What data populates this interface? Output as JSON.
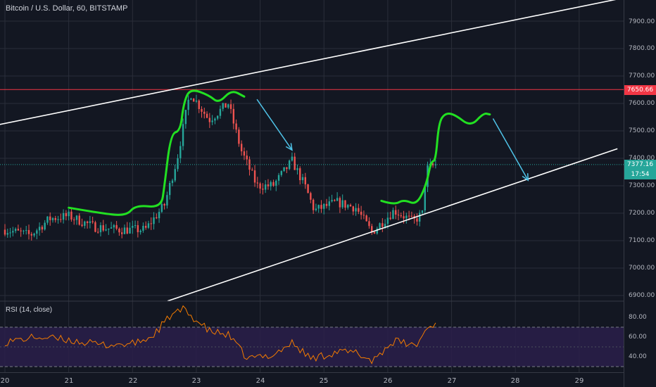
{
  "header": {
    "title": "Bitcoin / U.S. Dollar, 60, BITSTAMP"
  },
  "rsi_panel": {
    "title": "RSI (14, close)"
  },
  "price_axis": {
    "ticks": [
      "7900.00",
      "7800.00",
      "7700.00",
      "7600.00",
      "7500.00",
      "7400.00",
      "7300.00",
      "7200.00",
      "7100.00",
      "7000.00",
      "6900.00"
    ]
  },
  "rsi_axis": {
    "ticks": [
      "80.00",
      "60.00",
      "40.00"
    ]
  },
  "date_axis": {
    "ticks": [
      "20",
      "21",
      "22",
      "23",
      "24",
      "25",
      "26",
      "27",
      "28",
      "29"
    ]
  },
  "badges": {
    "resistance": {
      "label": "7650.66",
      "color": "#f23645"
    },
    "last_price": {
      "label": "7377.16",
      "color": "#26a69a"
    },
    "countdown": {
      "label": "17:54",
      "color": "#26a69a"
    }
  },
  "colors": {
    "background": "#131722",
    "grid": "#2a2e39",
    "up": "#26a69a",
    "down": "#ef5350",
    "channel": "#ffffff",
    "resistance_line": "#f23645",
    "drawing_green": "#22e022",
    "arrow_cyan": "#4fc3e8",
    "rsi_line": "#f57c00",
    "rsi_band": "#2a1f4a"
  },
  "chart_data": [
    {
      "type": "candlestick",
      "title": "Bitcoin / U.S. Dollar, 60, BITSTAMP",
      "x_ticks": [
        "20",
        "21",
        "22",
        "23",
        "24",
        "25",
        "26",
        "27",
        "28",
        "29"
      ],
      "ylim": [
        6880,
        7980
      ],
      "y_ticks": [
        7900,
        7800,
        7700,
        7600,
        7500,
        7400,
        7300,
        7200,
        7100,
        7000,
        6900
      ],
      "resistance_level": 7650.66,
      "last_price": 7377.16,
      "close_path_approx": [
        {
          "day": 20.0,
          "price": 7140
        },
        {
          "day": 20.4,
          "price": 7120
        },
        {
          "day": 20.7,
          "price": 7180
        },
        {
          "day": 21.0,
          "price": 7190
        },
        {
          "day": 21.4,
          "price": 7150
        },
        {
          "day": 21.8,
          "price": 7140
        },
        {
          "day": 22.2,
          "price": 7140
        },
        {
          "day": 22.5,
          "price": 7230
        },
        {
          "day": 22.7,
          "price": 7400
        },
        {
          "day": 22.9,
          "price": 7640
        },
        {
          "day": 23.2,
          "price": 7540
        },
        {
          "day": 23.5,
          "price": 7600
        },
        {
          "day": 23.7,
          "price": 7430
        },
        {
          "day": 23.95,
          "price": 7300
        },
        {
          "day": 24.2,
          "price": 7300
        },
        {
          "day": 24.5,
          "price": 7390
        },
        {
          "day": 24.7,
          "price": 7300
        },
        {
          "day": 24.85,
          "price": 7210
        },
        {
          "day": 25.2,
          "price": 7240
        },
        {
          "day": 25.5,
          "price": 7220
        },
        {
          "day": 25.75,
          "price": 7130
        },
        {
          "day": 26.1,
          "price": 7210
        },
        {
          "day": 26.4,
          "price": 7170
        },
        {
          "day": 26.55,
          "price": 7200
        },
        {
          "day": 26.6,
          "price": 7360
        },
        {
          "day": 26.75,
          "price": 7377
        }
      ]
    },
    {
      "type": "line",
      "title": "RSI (14, close)",
      "ylim": [
        25,
        95
      ],
      "y_ticks": [
        80,
        60,
        40
      ],
      "bands": [
        70,
        30
      ],
      "series": [
        {
          "name": "RSI (14, close)",
          "points": [
            {
              "day": 20.0,
              "value": 55
            },
            {
              "day": 20.5,
              "value": 60
            },
            {
              "day": 21.0,
              "value": 57
            },
            {
              "day": 21.5,
              "value": 52
            },
            {
              "day": 22.0,
              "value": 53
            },
            {
              "day": 22.3,
              "value": 60
            },
            {
              "day": 22.6,
              "value": 82
            },
            {
              "day": 22.8,
              "value": 88
            },
            {
              "day": 23.2,
              "value": 66
            },
            {
              "day": 23.5,
              "value": 62
            },
            {
              "day": 23.8,
              "value": 38
            },
            {
              "day": 24.2,
              "value": 42
            },
            {
              "day": 24.5,
              "value": 54
            },
            {
              "day": 24.8,
              "value": 38
            },
            {
              "day": 25.2,
              "value": 45
            },
            {
              "day": 25.5,
              "value": 44
            },
            {
              "day": 25.75,
              "value": 36
            },
            {
              "day": 26.1,
              "value": 56
            },
            {
              "day": 26.45,
              "value": 51
            },
            {
              "day": 26.6,
              "value": 68
            },
            {
              "day": 26.75,
              "value": 74
            }
          ]
        }
      ]
    }
  ],
  "annotations": {
    "channel_upper": [
      {
        "day": 19.85,
        "price": 7520
      },
      {
        "day": 29.6,
        "price": 7980
      }
    ],
    "channel_lower": [
      {
        "day": 22.55,
        "price": 6880
      },
      {
        "day": 29.6,
        "price": 7435
      }
    ],
    "green_pattern_1": [
      {
        "day": 21.0,
        "price": 7220
      },
      {
        "day": 21.5,
        "price": 7200
      },
      {
        "day": 21.9,
        "price": 7190
      },
      {
        "day": 22.05,
        "price": 7230
      },
      {
        "day": 22.45,
        "price": 7220
      },
      {
        "day": 22.5,
        "price": 7300
      },
      {
        "day": 22.6,
        "price": 7490
      },
      {
        "day": 22.75,
        "price": 7500
      },
      {
        "day": 22.8,
        "price": 7600
      },
      {
        "day": 22.9,
        "price": 7655
      },
      {
        "day": 23.2,
        "price": 7630
      },
      {
        "day": 23.35,
        "price": 7600
      },
      {
        "day": 23.55,
        "price": 7650
      },
      {
        "day": 23.75,
        "price": 7625
      }
    ],
    "green_pattern_2": [
      {
        "day": 25.9,
        "price": 7245
      },
      {
        "day": 26.1,
        "price": 7230
      },
      {
        "day": 26.25,
        "price": 7250
      },
      {
        "day": 26.45,
        "price": 7230
      },
      {
        "day": 26.6,
        "price": 7300
      },
      {
        "day": 26.68,
        "price": 7390
      },
      {
        "day": 26.75,
        "price": 7390
      },
      {
        "day": 26.8,
        "price": 7530
      },
      {
        "day": 26.9,
        "price": 7565
      },
      {
        "day": 27.05,
        "price": 7560
      },
      {
        "day": 27.3,
        "price": 7515
      },
      {
        "day": 27.5,
        "price": 7565
      },
      {
        "day": 27.6,
        "price": 7560
      }
    ],
    "arrow_1": [
      {
        "day": 23.95,
        "price": 7615
      },
      {
        "day": 24.5,
        "price": 7430
      }
    ],
    "arrow_2": [
      {
        "day": 27.65,
        "price": 7545
      },
      {
        "day": 28.2,
        "price": 7320
      }
    ]
  }
}
